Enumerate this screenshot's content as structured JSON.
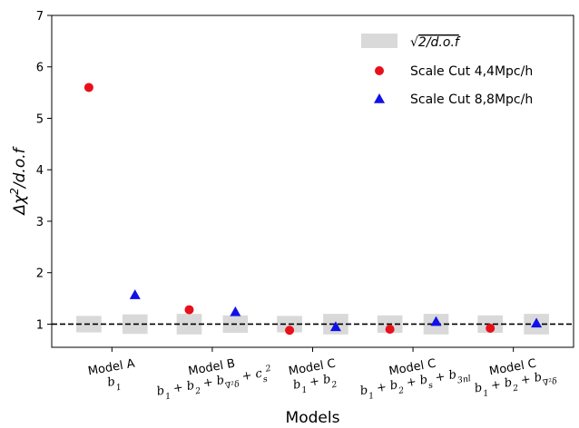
{
  "chart_data": {
    "type": "scatter",
    "xlabel": "Models",
    "ylabel_text": {
      "main": "Δχ",
      "sup": "2",
      "rest": "/d.o.f"
    },
    "ylim": [
      0.55,
      7
    ],
    "yticks": [
      1,
      2,
      3,
      4,
      5,
      6,
      7
    ],
    "reference_line": {
      "y": 1,
      "style": "dashed",
      "color": "#000000"
    },
    "categories": [
      {
        "name": "Model A",
        "sub": [
          {
            "t": "b"
          },
          {
            "t": "1",
            "s": "sub"
          }
        ]
      },
      {
        "name": "Model B",
        "sub": [
          {
            "t": "b"
          },
          {
            "t": "1",
            "s": "sub"
          },
          {
            "t": " + b"
          },
          {
            "t": "2",
            "s": "sub"
          },
          {
            "t": " + b"
          },
          {
            "t": "∇²δ",
            "s": "sub"
          },
          {
            "t": " + c"
          },
          {
            "t": "s",
            "s": "sub"
          },
          {
            "t": "2",
            "s": "sup"
          }
        ]
      },
      {
        "name": "Model C",
        "sub": [
          {
            "t": "b"
          },
          {
            "t": "1",
            "s": "sub"
          },
          {
            "t": " + b"
          },
          {
            "t": "2",
            "s": "sub"
          }
        ]
      },
      {
        "name": "Model C",
        "sub": [
          {
            "t": "b"
          },
          {
            "t": "1",
            "s": "sub"
          },
          {
            "t": " + b"
          },
          {
            "t": "2",
            "s": "sub"
          },
          {
            "t": " + b"
          },
          {
            "t": "s",
            "s": "sub"
          },
          {
            "t": " + b"
          },
          {
            "t": "3nl",
            "s": "sub"
          }
        ]
      },
      {
        "name": "Model C",
        "sub": [
          {
            "t": "b"
          },
          {
            "t": "1",
            "s": "sub"
          },
          {
            "t": " + b"
          },
          {
            "t": "2",
            "s": "sub"
          },
          {
            "t": " + b"
          },
          {
            "t": "∇²δ",
            "s": "sub"
          }
        ]
      }
    ],
    "series": [
      {
        "name": "Scale Cut 4,4Mpc/h",
        "marker": "circle",
        "color": "#e8101a",
        "x": [
          -0.23,
          0.77,
          1.77,
          2.77,
          3.77
        ],
        "y": [
          5.6,
          1.28,
          0.88,
          0.9,
          0.92
        ],
        "band_halfheight": [
          0.16,
          0.2,
          0.16,
          0.17,
          0.17
        ]
      },
      {
        "name": "Scale Cut 8,8Mpc/h",
        "marker": "triangle",
        "color": "#1010e8",
        "x": [
          0.23,
          1.23,
          2.23,
          3.23,
          4.23
        ],
        "y": [
          1.57,
          1.24,
          0.95,
          1.05,
          1.02
        ],
        "band_halfheight": [
          0.19,
          0.17,
          0.2,
          0.2,
          0.2
        ]
      }
    ],
    "uncertainty_bands": {
      "label": [
        {
          "t": "√"
        },
        {
          "t": "2/d.o.f",
          "s": "over"
        }
      ],
      "color": "#d9d9d9",
      "centre": 1
    },
    "legend": {
      "position": "top-right"
    }
  }
}
